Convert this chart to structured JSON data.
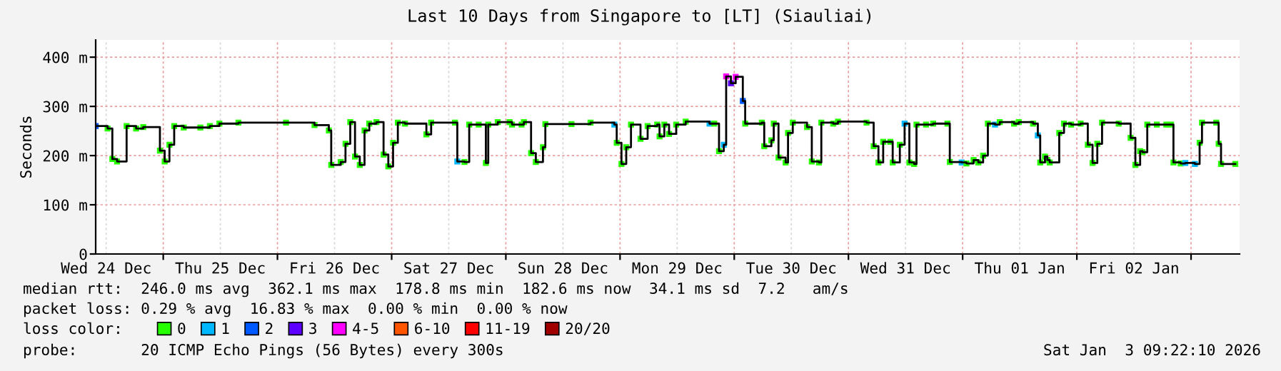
{
  "chart_data": {
    "type": "step",
    "title": "Last 10 Days from Singapore to [LT] (Siauliai)",
    "ylabel": "Seconds",
    "xlim": [
      "2025-12-24T09:48",
      "2026-01-03T10:12"
    ],
    "xticks": [
      {
        "value": "2025-12-24T12:00",
        "label": "Wed 24 Dec"
      },
      {
        "value": "2025-12-25T00:00",
        "label": null
      },
      {
        "value": "2025-12-25T12:00",
        "label": "Thu 25 Dec"
      },
      {
        "value": "2025-12-26T00:00",
        "label": null
      },
      {
        "value": "2025-12-26T12:00",
        "label": "Fri 26 Dec"
      },
      {
        "value": "2025-12-27T00:00",
        "label": null
      },
      {
        "value": "2025-12-27T12:00",
        "label": "Sat 27 Dec"
      },
      {
        "value": "2025-12-28T00:00",
        "label": null
      },
      {
        "value": "2025-12-28T12:00",
        "label": "Sun 28 Dec"
      },
      {
        "value": "2025-12-29T00:00",
        "label": null
      },
      {
        "value": "2025-12-29T12:00",
        "label": "Mon 29 Dec"
      },
      {
        "value": "2025-12-30T00:00",
        "label": null
      },
      {
        "value": "2025-12-30T12:00",
        "label": "Tue 30 Dec"
      },
      {
        "value": "2025-12-31T00:00",
        "label": null
      },
      {
        "value": "2025-12-31T12:00",
        "label": "Wed 31 Dec"
      },
      {
        "value": "2026-01-01T00:00",
        "label": null
      },
      {
        "value": "2026-01-01T12:00",
        "label": "Thu 01 Jan"
      },
      {
        "value": "2026-01-02T00:00",
        "label": null
      },
      {
        "value": "2026-01-02T12:00",
        "label": "Fri 02 Jan"
      },
      {
        "value": "2026-01-03T00:00",
        "label": null
      }
    ],
    "ylim": [
      0,
      435
    ],
    "yticks": [
      0,
      {
        "value": 100,
        "label": "100 m"
      },
      {
        "value": 200,
        "label": "200 m"
      },
      {
        "value": 300,
        "label": "300 m"
      },
      {
        "value": 400,
        "label": "400 m"
      }
    ],
    "grid": true,
    "legend": "bottom",
    "legend_title": "loss color:",
    "series": [
      {
        "color": "#000000",
        "marker": "square",
        "x": [
          "2025-12-24T09:48",
          "2025-12-24T12:18",
          "2025-12-24T13:18",
          "2025-12-24T14:18",
          "2025-12-24T16:18",
          "2025-12-24T18:18",
          "2025-12-24T19:48",
          "2025-12-24T23:18",
          "2025-12-25T00:18",
          "2025-12-25T01:18",
          "2025-12-25T02:18",
          "2025-12-25T04:18",
          "2025-12-25T07:48",
          "2025-12-25T09:48",
          "2025-12-25T11:48",
          "2025-12-25T15:48",
          "2025-12-26T01:48",
          "2025-12-26T07:48",
          "2025-12-26T10:48",
          "2025-12-26T11:18",
          "2025-12-26T13:18",
          "2025-12-26T14:18",
          "2025-12-26T15:18",
          "2025-12-26T16:18",
          "2025-12-26T17:18",
          "2025-12-26T18:18",
          "2025-12-26T19:18",
          "2025-12-26T20:48",
          "2025-12-26T22:18",
          "2025-12-26T23:18",
          "2025-12-27T00:18",
          "2025-12-27T01:18",
          "2025-12-27T02:48",
          "2025-12-27T07:18",
          "2025-12-27T08:18",
          "2025-12-27T13:18",
          "2025-12-27T13:48",
          "2025-12-27T15:18",
          "2025-12-27T16:18",
          "2025-12-27T18:18",
          "2025-12-27T19:48",
          "2025-12-27T20:18",
          "2025-12-27T22:18",
          "2025-12-28T00:48",
          "2025-12-28T01:18",
          "2025-12-28T03:18",
          "2025-12-28T03:48",
          "2025-12-28T05:18",
          "2025-12-28T06:18",
          "2025-12-28T07:48",
          "2025-12-28T08:18",
          "2025-12-28T13:48",
          "2025-12-28T17:48",
          "2025-12-28T22:48",
          "2025-12-28T23:18",
          "2025-12-29T00:18",
          "2025-12-29T01:18",
          "2025-12-29T02:18",
          "2025-12-29T04:18",
          "2025-12-29T05:48",
          "2025-12-29T07:48",
          "2025-12-29T08:18",
          "2025-12-29T09:18",
          "2025-12-29T10:18",
          "2025-12-29T11:48",
          "2025-12-29T13:48",
          "2025-12-29T18:48",
          "2025-12-29T19:48",
          "2025-12-29T20:48",
          "2025-12-29T21:48",
          "2025-12-29T22:18",
          "2025-12-29T23:18",
          "2025-12-30T00:18",
          "2025-12-30T01:48",
          "2025-12-30T02:18",
          "2025-12-30T05:48",
          "2025-12-30T06:18",
          "2025-12-30T07:48",
          "2025-12-30T08:18",
          "2025-12-30T09:18",
          "2025-12-30T10:48",
          "2025-12-30T11:18",
          "2025-12-30T12:18",
          "2025-12-30T15:18",
          "2025-12-30T16:18",
          "2025-12-30T17:48",
          "2025-12-30T18:18",
          "2025-12-30T20:48",
          "2025-12-30T21:48",
          "2025-12-31T03:48",
          "2025-12-31T05:18",
          "2025-12-31T06:18",
          "2025-12-31T07:18",
          "2025-12-31T08:48",
          "2025-12-31T09:18",
          "2025-12-31T10:48",
          "2025-12-31T11:48",
          "2025-12-31T12:48",
          "2025-12-31T13:48",
          "2025-12-31T14:18",
          "2025-12-31T16:18",
          "2025-12-31T17:48",
          "2025-12-31T20:48",
          "2025-12-31T21:18",
          "2025-12-31T23:48",
          "2026-01-01T00:48",
          "2026-01-01T02:18",
          "2026-01-01T03:18",
          "2026-01-01T04:18",
          "2026-01-01T05:18",
          "2026-01-01T06:48",
          "2026-01-01T07:48",
          "2026-01-01T10:48",
          "2026-01-01T11:48",
          "2026-01-01T14:48",
          "2026-01-01T15:48",
          "2026-01-01T16:18",
          "2026-01-01T17:18",
          "2026-01-01T17:48",
          "2026-01-01T18:18",
          "2026-01-01T20:18",
          "2026-01-01T21:18",
          "2026-01-01T22:48",
          "2026-01-02T00:48",
          "2026-01-02T02:18",
          "2026-01-02T03:18",
          "2026-01-02T04:18",
          "2026-01-02T05:18",
          "2026-01-02T08:48",
          "2026-01-02T11:18",
          "2026-01-02T12:18",
          "2026-01-02T13:18",
          "2026-01-02T13:48",
          "2026-01-02T14:48",
          "2026-01-02T16:48",
          "2026-01-02T18:48",
          "2026-01-02T19:48",
          "2026-01-02T20:18",
          "2026-01-02T21:48",
          "2026-01-02T22:48",
          "2026-01-03T00:48",
          "2026-01-03T01:48",
          "2026-01-03T02:18",
          "2026-01-03T05:18",
          "2026-01-03T05:48",
          "2026-01-03T06:18",
          "2026-01-03T09:18"
        ],
        "values": [
          260,
          255,
          193,
          188,
          260,
          255,
          258,
          210,
          188,
          222,
          260,
          257,
          257,
          260,
          265,
          267,
          267,
          262,
          251,
          181,
          187,
          224,
          268,
          198,
          181,
          251,
          265,
          268,
          202,
          178,
          226,
          267,
          265,
          243,
          267,
          267,
          188,
          187,
          263,
          263,
          185,
          263,
          268,
          268,
          263,
          263,
          268,
          205,
          187,
          217,
          264,
          264,
          267,
          263,
          226,
          183,
          217,
          263,
          234,
          260,
          263,
          239,
          263,
          244,
          263,
          269,
          265,
          265,
          209,
          222,
          361,
          347,
          360,
          311,
          265,
          267,
          219,
          231,
          265,
          196,
          186,
          246,
          267,
          258,
          188,
          186,
          267,
          265,
          269,
          267,
          219,
          186,
          228,
          228,
          186,
          222,
          265,
          186,
          183,
          263,
          263,
          265,
          265,
          187,
          186,
          184,
          191,
          186,
          200,
          265,
          263,
          268,
          265,
          268,
          265,
          241,
          186,
          198,
          191,
          186,
          246,
          265,
          263,
          265,
          222,
          185,
          224,
          267,
          265,
          236,
          181,
          209,
          207,
          263,
          263,
          263,
          263,
          186,
          184,
          185,
          183,
          226,
          267,
          267,
          224,
          183,
          183
        ],
        "colors": [
          "#0059ff",
          "#26ff00",
          "#26ff00",
          "#26ff00",
          "#26ff00",
          "#26ff00",
          "#26ff00",
          "#26ff00",
          "#26ff00",
          "#26ff00",
          "#26ff00",
          "#26ff00",
          "#26ff00",
          "#26ff00",
          "#26ff00",
          "#26ff00",
          "#26ff00",
          "#26ff00",
          "#26ff00",
          "#26ff00",
          "#26ff00",
          "#26ff00",
          "#26ff00",
          "#26ff00",
          "#26ff00",
          "#26ff00",
          "#26ff00",
          "#26ff00",
          "#26ff00",
          "#26ff00",
          "#26ff00",
          "#26ff00",
          "#26ff00",
          "#26ff00",
          "#26ff00",
          "#26ff00",
          "#00b8ff",
          "#26ff00",
          "#26ff00",
          "#26ff00",
          "#26ff00",
          "#26ff00",
          "#26ff00",
          "#26ff00",
          "#26ff00",
          "#26ff00",
          "#26ff00",
          "#26ff00",
          "#26ff00",
          "#26ff00",
          "#26ff00",
          "#26ff00",
          "#26ff00",
          "#00b8ff",
          "#26ff00",
          "#26ff00",
          "#26ff00",
          "#26ff00",
          "#26ff00",
          "#26ff00",
          "#26ff00",
          "#26ff00",
          "#26ff00",
          "#26ff00",
          "#26ff00",
          "#26ff00",
          "#00b8ff",
          "#26ff00",
          "#26ff00",
          "#00b8ff",
          "#ff00ff",
          "#5e00ff",
          "#ff00ff",
          "#0059ff",
          "#26ff00",
          "#26ff00",
          "#26ff00",
          "#26ff00",
          "#26ff00",
          "#26ff00",
          "#26ff00",
          "#26ff00",
          "#26ff00",
          "#26ff00",
          "#26ff00",
          "#26ff00",
          "#26ff00",
          "#26ff00",
          "#26ff00",
          "#26ff00",
          "#26ff00",
          "#26ff00",
          "#26ff00",
          "#26ff00",
          "#26ff00",
          "#26ff00",
          "#00b8ff",
          "#26ff00",
          "#26ff00",
          "#26ff00",
          "#26ff00",
          "#26ff00",
          "#26ff00",
          "#26ff00",
          "#00b8ff",
          "#26ff00",
          "#26ff00",
          "#26ff00",
          "#26ff00",
          "#26ff00",
          "#00b8ff",
          "#26ff00",
          "#26ff00",
          "#26ff00",
          "#26ff00",
          "#00b8ff",
          "#26ff00",
          "#26ff00",
          "#26ff00",
          "#26ff00",
          "#26ff00",
          "#26ff00",
          "#26ff00",
          "#26ff00",
          "#26ff00",
          "#26ff00",
          "#26ff00",
          "#26ff00",
          "#26ff00",
          "#26ff00",
          "#26ff00",
          "#26ff00",
          "#26ff00",
          "#26ff00",
          "#26ff00",
          "#26ff00",
          "#26ff00",
          "#26ff00",
          "#26ff00",
          "#00b8ff",
          "#00b8ff",
          "#26ff00",
          "#26ff00",
          "#26ff00",
          "#26ff00",
          "#26ff00",
          "#26ff00"
        ]
      },
      {
        "type": "scatter",
        "name": "0",
        "color": "#26ff00"
      },
      {
        "type": "scatter",
        "name": "1",
        "color": "#00b8ff"
      },
      {
        "type": "scatter",
        "name": "2",
        "color": "#0059ff"
      },
      {
        "type": "scatter",
        "name": "3",
        "color": "#5e00ff"
      },
      {
        "type": "scatter",
        "name": "4-5",
        "color": "#ff00ff"
      },
      {
        "type": "scatter",
        "name": "6-10",
        "color": "#ff5500"
      },
      {
        "type": "scatter",
        "name": "11-19",
        "color": "#ff0000"
      },
      {
        "type": "scatter",
        "name": "20/20",
        "color": "#a10000"
      }
    ],
    "annotations": [
      "median rtt:  246.0 ms avg  362.1 ms max  178.8 ms min  182.6 ms now  34.1 ms sd  7.2   am/s",
      "packet loss: 0.29 % avg  16.83 % max  0.00 % min  0.00 % now",
      "probe:       20 ICMP Echo Pings (56 Bytes) every 300s",
      "Sat Jan  3 09:22:10 2026"
    ]
  }
}
